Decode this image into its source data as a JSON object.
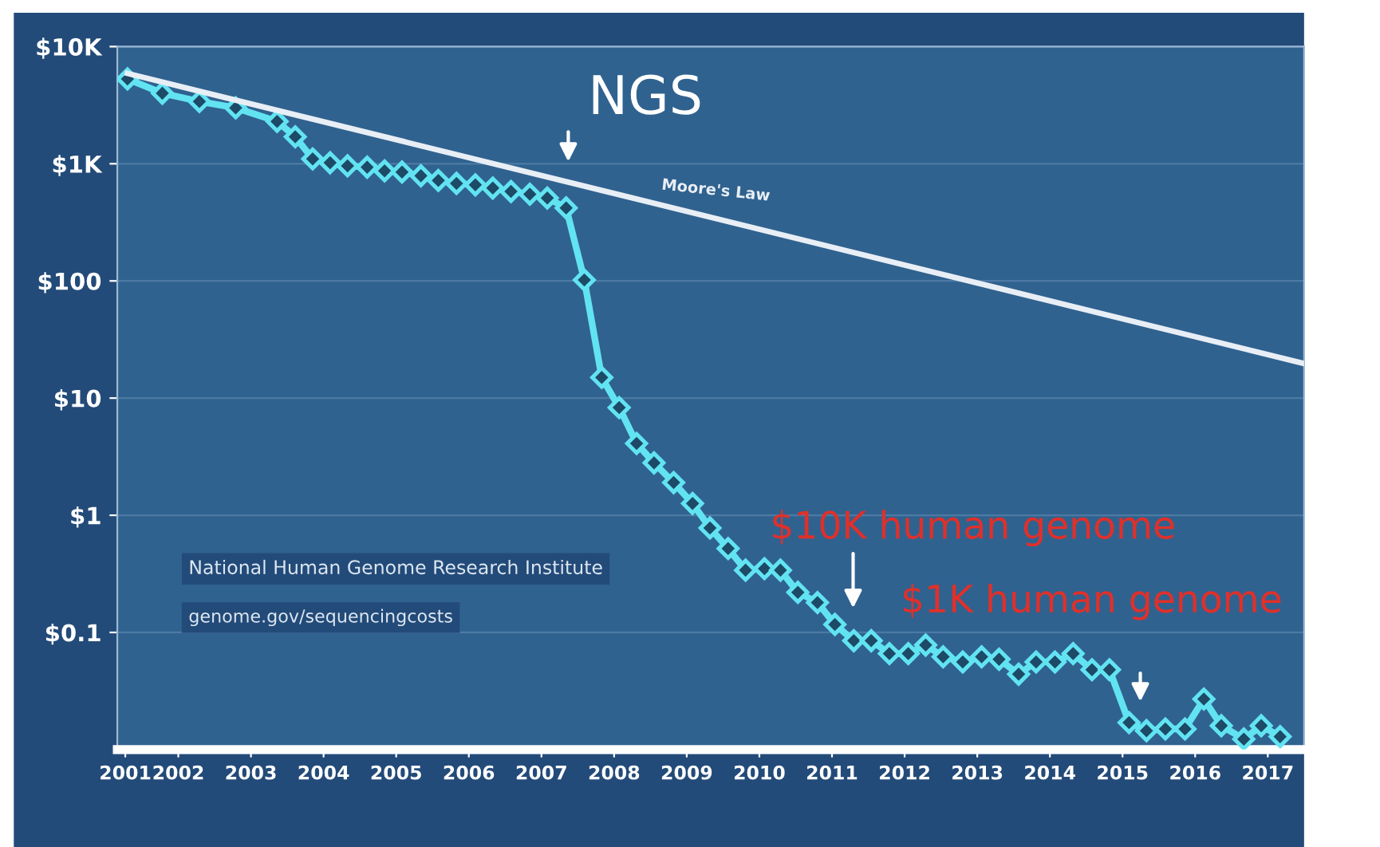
{
  "chart_data": {
    "type": "line",
    "log": "y",
    "x": [
      2001.3,
      2001.78,
      2002.29,
      2002.79,
      2003.36,
      2003.61,
      2003.85,
      2004.09,
      2004.33,
      2004.6,
      2004.84,
      2005.08,
      2005.34,
      2005.58,
      2005.83,
      2006.09,
      2006.33,
      2006.58,
      2006.84,
      2007.08,
      2007.34,
      2007.59,
      2007.83,
      2008.07,
      2008.31,
      2008.55,
      2008.82,
      2009.08,
      2009.32,
      2009.57,
      2009.81,
      2010.07,
      2010.29,
      2010.53,
      2010.8,
      2011.04,
      2011.3,
      2011.54,
      2011.79,
      2012.05,
      2012.29,
      2012.53,
      2012.8,
      2013.06,
      2013.3,
      2013.57,
      2013.81,
      2014.07,
      2014.32,
      2014.58,
      2014.82,
      2015.09,
      2015.33,
      2015.59,
      2015.86,
      2016.12,
      2016.36,
      2016.67,
      2016.91,
      2017.17
    ],
    "series": [
      {
        "color": "#62e3f2",
        "marker": "diamond",
        "values": [
          5300,
          4000,
          3400,
          3000,
          2300,
          1700,
          1100,
          1020,
          960,
          935,
          870,
          850,
          790,
          720,
          680,
          660,
          620,
          580,
          550,
          510,
          420,
          102,
          15,
          8.3,
          4.1,
          2.8,
          1.9,
          1.26,
          0.78,
          0.52,
          0.34,
          0.35,
          0.34,
          0.22,
          0.18,
          0.117,
          0.085,
          0.085,
          0.066,
          0.066,
          0.078,
          0.062,
          0.056,
          0.062,
          0.059,
          0.044,
          0.056,
          0.056,
          0.066,
          0.048,
          0.048,
          0.017,
          0.0145,
          0.015,
          0.015,
          0.027,
          0.016,
          0.0123,
          0.016,
          0.0129
        ]
      },
      {
        "name": "Moore's Law",
        "color": "#e8eef5",
        "marker": "none",
        "x": [
          2001.3,
          2017.5
        ],
        "values": [
          5900,
          19.7
        ]
      }
    ],
    "xlim": [
      2001.16,
      2017.5
    ],
    "xticks": [
      {
        "value": 2001.27,
        "label": "2001"
      },
      2002,
      2003,
      2004,
      2005,
      2006,
      2007,
      2008,
      2009,
      2010,
      2011,
      2012,
      2013,
      2014,
      2015,
      2016,
      2017
    ],
    "ylim": [
      0.01,
      10000
    ],
    "yticks": [
      {
        "value": 10000,
        "label": "$10K"
      },
      {
        "value": 1000,
        "label": "$1K"
      },
      {
        "value": 100,
        "label": "$100"
      },
      {
        "value": 10,
        "label": "$10"
      },
      {
        "value": 1,
        "label": "$1"
      },
      {
        "value": 0.1,
        "label": "$0.1"
      }
    ],
    "grid": "y",
    "legend": false,
    "annotations": [
      "NGS",
      "$10K human genome",
      "$1K human genome",
      "National Human Genome Research Institute",
      "genome.gov/sequencingcosts"
    ]
  }
}
